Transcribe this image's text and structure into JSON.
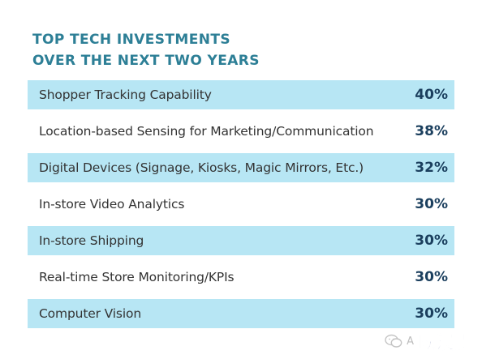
{
  "chart_data": {
    "type": "table",
    "title": [
      "TOP TECH INVESTMENTS",
      "OVER THE NEXT TWO YEARS"
    ],
    "categories": [
      "Shopper Tracking Capability",
      "Location-based Sensing for Marketing/Communication",
      "Digital Devices (Signage, Kiosks, Magic Mirrors, Etc.)",
      "In-store Video Analytics",
      "In-store Shipping",
      "Real-time Store Monitoring/KPIs",
      "Computer Vision"
    ],
    "values": [
      40,
      38,
      32,
      30,
      30,
      30,
      30
    ],
    "value_labels": [
      "40%",
      "38%",
      "32%",
      "30%",
      "30%",
      "30%",
      "30%"
    ],
    "unit": "%",
    "row_shading": "alternating",
    "colors": {
      "title": "#2d7f96",
      "shaded_row": "#b7e6f4",
      "value_text": "#1b3f5e",
      "label_text": "#333333"
    }
  },
  "watermark": {
    "icon": "wechat-icon",
    "prefix": "A",
    "text": "欧漫露"
  }
}
